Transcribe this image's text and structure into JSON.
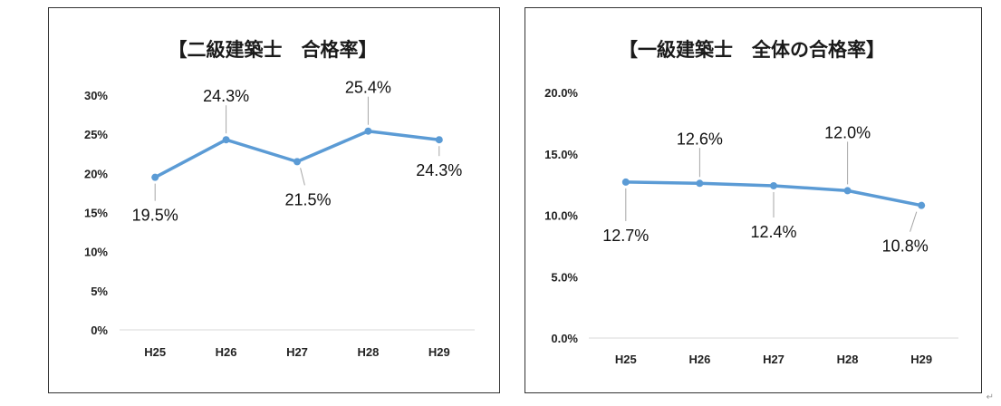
{
  "chart_data": [
    {
      "type": "line",
      "title": "【二級建築士　合格率】",
      "categories": [
        "H25",
        "H26",
        "H27",
        "H28",
        "H29"
      ],
      "series": [
        {
          "values": [
            19.5,
            24.3,
            21.5,
            25.4,
            24.3
          ]
        }
      ],
      "data_labels": [
        "19.5%",
        "24.3%",
        "21.5%",
        "25.4%",
        "24.3%"
      ],
      "y_ticks": [
        "0%",
        "5%",
        "10%",
        "15%",
        "20%",
        "25%",
        "30%"
      ],
      "ylim": [
        0,
        30
      ],
      "grid": false,
      "line_color": "#5b9bd5"
    },
    {
      "type": "line",
      "title": "【一級建築士　全体の合格率】",
      "categories": [
        "H25",
        "H26",
        "H27",
        "H28",
        "H29"
      ],
      "series": [
        {
          "values": [
            12.7,
            12.6,
            12.4,
            12.0,
            10.8
          ]
        }
      ],
      "data_labels": [
        "12.7%",
        "12.6%",
        "12.4%",
        "12.0%",
        "10.8%"
      ],
      "y_ticks": [
        "0.0%",
        "5.0%",
        "10.0%",
        "15.0%",
        "20.0%"
      ],
      "ylim": [
        0,
        20
      ],
      "grid": false,
      "line_color": "#5b9bd5"
    }
  ]
}
